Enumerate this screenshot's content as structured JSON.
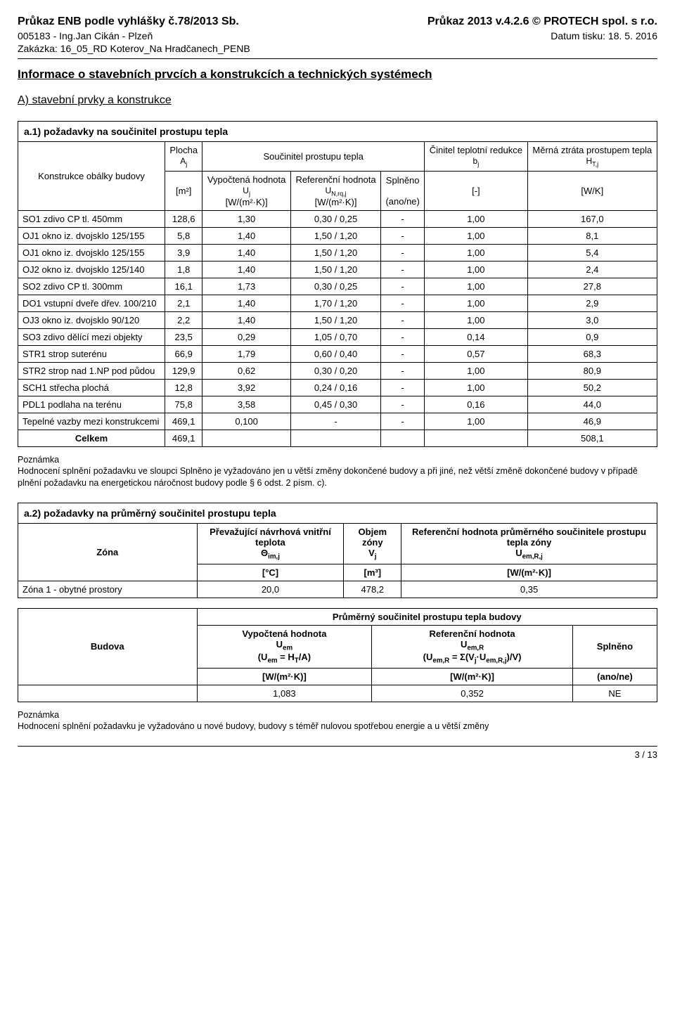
{
  "header": {
    "left1": "Průkaz ENB podle vyhlášky č.78/2013 Sb.",
    "left2": "005183 - Ing.Jan Cikán - Plzeň",
    "left3": "Zakázka: 16_05_RD Koterov_Na Hradčanech_PENB",
    "right1": "Průkaz 2013 v.4.2.6 © PROTECH spol. s r.o.",
    "right2": "Datum tisku: 18. 5. 2016"
  },
  "titles": {
    "main": "Informace o stavebních prvcích a konstrukcích a technických systémech",
    "sectionA": "A) stavební prvky a konstrukce",
    "a1": "a.1) požadavky na součinitel prostupu tepla",
    "a2": "a.2) požadavky na průměrný součinitel prostupu tepla"
  },
  "a1": {
    "col_konstrukce": "Konstrukce obálky budovy",
    "col_plocha": "Plocha",
    "col_plocha_sym": "A_j",
    "col_soucinitel": "Součinitel prostupu tepla",
    "col_vypoctena": "Vypočtená hodnota",
    "col_vypoctena_sym": "U_j",
    "col_referencni": "Referenční hodnota",
    "col_referencni_sym": "U_N,rq,j",
    "col_splneno": "Splněno",
    "col_cinitel": "Činitel teplotní redukce",
    "col_cinitel_sym": "b_j",
    "col_merna": "Měrná ztráta prostupem tepla",
    "col_merna_sym": "H_T,j",
    "unit_m2": "[m²]",
    "unit_wm2k": "[W/(m²·K)]",
    "unit_anone": "(ano/ne)",
    "unit_dash": "[-]",
    "unit_wk": "[W/K]",
    "rows": [
      {
        "name": "SO1 zdivo CP tl. 450mm",
        "a": "128,6",
        "u": "1,30",
        "ur": "0,30 / 0,25",
        "s": "-",
        "b": "1,00",
        "h": "167,0"
      },
      {
        "name": "OJ1 okno iz. dvojsklo 125/155",
        "a": "5,8",
        "u": "1,40",
        "ur": "1,50 / 1,20",
        "s": "-",
        "b": "1,00",
        "h": "8,1"
      },
      {
        "name": "OJ1 okno iz. dvojsklo 125/155",
        "a": "3,9",
        "u": "1,40",
        "ur": "1,50 / 1,20",
        "s": "-",
        "b": "1,00",
        "h": "5,4"
      },
      {
        "name": "OJ2 okno iz. dvojsklo 125/140",
        "a": "1,8",
        "u": "1,40",
        "ur": "1,50 / 1,20",
        "s": "-",
        "b": "1,00",
        "h": "2,4"
      },
      {
        "name": "SO2 zdivo CP tl. 300mm",
        "a": "16,1",
        "u": "1,73",
        "ur": "0,30 / 0,25",
        "s": "-",
        "b": "1,00",
        "h": "27,8"
      },
      {
        "name": "DO1 vstupní dveře dřev. 100/210",
        "a": "2,1",
        "u": "1,40",
        "ur": "1,70 / 1,20",
        "s": "-",
        "b": "1,00",
        "h": "2,9"
      },
      {
        "name": "OJ3 okno iz. dvojsklo 90/120",
        "a": "2,2",
        "u": "1,40",
        "ur": "1,50 / 1,20",
        "s": "-",
        "b": "1,00",
        "h": "3,0"
      },
      {
        "name": "SO3 zdivo dělící mezi objekty",
        "a": "23,5",
        "u": "0,29",
        "ur": "1,05 / 0,70",
        "s": "-",
        "b": "0,14",
        "h": "0,9"
      },
      {
        "name": "STR1 strop suterénu",
        "a": "66,9",
        "u": "1,79",
        "ur": "0,60 / 0,40",
        "s": "-",
        "b": "0,57",
        "h": "68,3"
      },
      {
        "name": "STR2 strop nad 1.NP pod půdou",
        "a": "129,9",
        "u": "0,62",
        "ur": "0,30 / 0,20",
        "s": "-",
        "b": "1,00",
        "h": "80,9"
      },
      {
        "name": "SCH1 střecha plochá",
        "a": "12,8",
        "u": "3,92",
        "ur": "0,24 / 0,16",
        "s": "-",
        "b": "1,00",
        "h": "50,2"
      },
      {
        "name": "PDL1 podlaha na terénu",
        "a": "75,8",
        "u": "3,58",
        "ur": "0,45 / 0,30",
        "s": "-",
        "b": "0,16",
        "h": "44,0"
      },
      {
        "name": "Tepelné vazby mezi konstrukcemi",
        "a": "469,1",
        "u": "0,100",
        "ur": "-",
        "s": "-",
        "b": "1,00",
        "h": "46,9"
      }
    ],
    "total_label": "Celkem",
    "total_a": "469,1",
    "total_h": "508,1"
  },
  "note1": {
    "title": "Poznámka",
    "body": "Hodnocení splnění požadavku ve sloupci Splněno je vyžadováno jen u větší změny dokončené budovy a při jiné, než větší změně dokončené budovy v případě plnění požadavku na energetickou náročnost budovy podle § 6 odst. 2 písm. c)."
  },
  "a2": {
    "col_zona": "Zóna",
    "col_prevazujici": "Převažující návrhová vnitřní teplota",
    "col_prevazujici_sym": "Θ_im,j",
    "col_objem": "Objem zóny",
    "col_objem_sym": "V_j",
    "col_ref": "Referenční hodnota průměrného součinitele prostupu tepla zóny",
    "col_ref_sym": "U_em,R,j",
    "unit_c": "[°C]",
    "unit_m3": "[m³]",
    "unit_wm2k": "[W/(m²·K)]",
    "rows": [
      {
        "name": "Zóna 1 - obytné prostory",
        "t": "20,0",
        "v": "478,2",
        "u": "0,35"
      }
    ]
  },
  "a2b": {
    "title": "Průměrný součinitel prostupu tepla budovy",
    "col_budova": "Budova",
    "col_vyp": "Vypočtená hodnota",
    "col_vyp_sym": "U_em",
    "col_vyp_eq": "(U_em = H_T/A)",
    "col_ref": "Referenční hodnota",
    "col_ref_sym": "U_em,R",
    "col_ref_eq": "(U_em,R = Σ(V_j·U_em,R,j)/V)",
    "col_splneno": "Splněno",
    "unit_wm2k": "[W/(m²·K)]",
    "unit_anone": "(ano/ne)",
    "val_vyp": "1,083",
    "val_ref": "0,352",
    "val_spl": "NE"
  },
  "note2": {
    "title": "Poznámka",
    "body": "Hodnocení splnění požadavku je vyžadováno u nové budovy, budovy s téměř nulovou spotřebou energie a u větší změny"
  },
  "footer": "3 / 13"
}
